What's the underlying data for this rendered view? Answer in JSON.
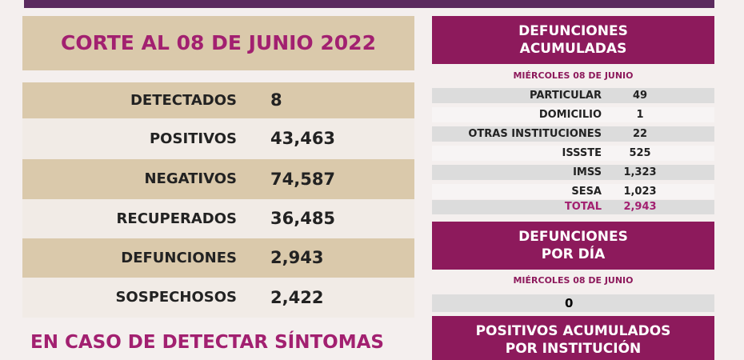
{
  "header": {
    "title": "CORTE AL 08 DE JUNIO 2022"
  },
  "summary": {
    "rows": [
      {
        "label": "DETECTADOS",
        "value": "8"
      },
      {
        "label": "POSITIVOS",
        "value": "43,463"
      },
      {
        "label": "NEGATIVOS",
        "value": "74,587"
      },
      {
        "label": "RECUPERADOS",
        "value": "36,485"
      },
      {
        "label": "DEFUNCIONES",
        "value": "2,943"
      },
      {
        "label": "SOSPECHOSOS",
        "value": "2,422"
      }
    ]
  },
  "footer": {
    "text": "EN CASO DE DETECTAR SÍNTOMAS"
  },
  "deaths_total": {
    "title": [
      "DEFUNCIONES",
      "ACUMULADAS"
    ],
    "date": "MIÉRCOLES 08 DE JUNIO",
    "rows": [
      {
        "label": "PARTICULAR",
        "value": "49"
      },
      {
        "label": "DOMICILIO",
        "value": "1"
      },
      {
        "label": "OTRAS INSTITUCIONES",
        "value": "22"
      },
      {
        "label": "ISSSTE",
        "value": "525"
      },
      {
        "label": "IMSS",
        "value": "1,323"
      },
      {
        "label": "SESA",
        "value": "1,023"
      }
    ],
    "total": {
      "label": "TOTAL",
      "value": "2,943"
    }
  },
  "deaths_daily": {
    "title": [
      "DEFUNCIONES",
      "POR DÍA"
    ],
    "date": "MIÉRCOLES 08 DE JUNIO",
    "value": "0"
  },
  "positives": {
    "title": [
      "POSITIVOS ACUMULADOS",
      "POR INSTITUCIÓN"
    ]
  }
}
